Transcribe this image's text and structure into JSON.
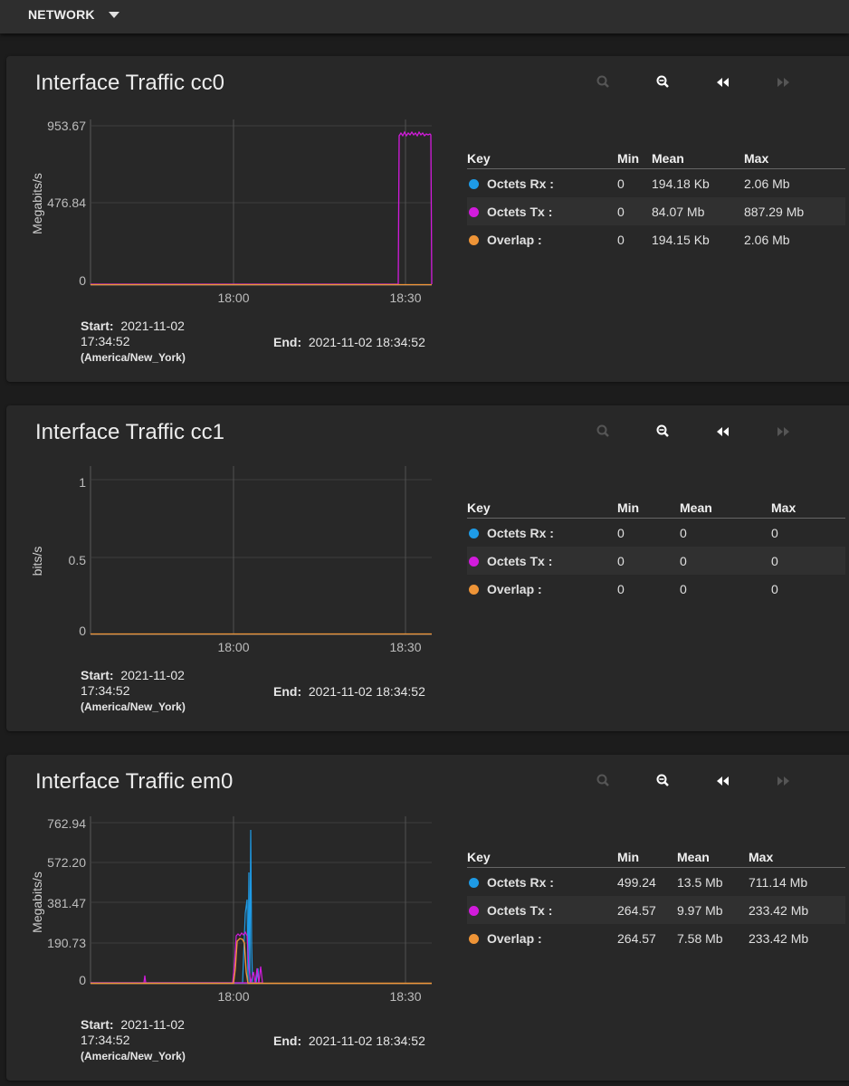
{
  "header": {
    "title": "NETWORK"
  },
  "colors": {
    "rx": "#1e9be6",
    "tx": "#d21bdc",
    "overlap": "#ee9437"
  },
  "key_header": {
    "key": "Key",
    "min": "Min",
    "mean": "Mean",
    "max": "Max"
  },
  "footer": {
    "start_label": "Start:",
    "start_date": "2021-11-02",
    "start_time": "17:34:52",
    "timezone": "(America/New_York)",
    "end_label": "End:",
    "end_value": "2021-11-02 18:34:52"
  },
  "cards": [
    {
      "title": "Interface Traffic cc0",
      "ylabel": "Megabits/s",
      "yticks": [
        "953.67",
        "476.84",
        "0"
      ],
      "xticks": [
        "18:00",
        "18:30"
      ],
      "rows": [
        {
          "label": "Octets Rx :",
          "min": "0",
          "mean": "194.18 Kb",
          "max": "2.06 Mb"
        },
        {
          "label": "Octets Tx :",
          "min": "0",
          "mean": "84.07 Mb",
          "max": "887.29 Mb"
        },
        {
          "label": "Overlap :",
          "min": "0",
          "mean": "194.15 Kb",
          "max": "2.06 Mb"
        }
      ]
    },
    {
      "title": "Interface Traffic cc1",
      "ylabel": "bits/s",
      "yticks": [
        "1",
        "0.5",
        "0"
      ],
      "xticks": [
        "18:00",
        "18:30"
      ],
      "rows": [
        {
          "label": "Octets Rx :",
          "min": "0",
          "mean": "0",
          "max": "0"
        },
        {
          "label": "Octets Tx :",
          "min": "0",
          "mean": "0",
          "max": "0"
        },
        {
          "label": "Overlap :",
          "min": "0",
          "mean": "0",
          "max": "0"
        }
      ]
    },
    {
      "title": "Interface Traffic em0",
      "ylabel": "Megabits/s",
      "yticks": [
        "762.94",
        "572.20",
        "381.47",
        "190.73",
        "0"
      ],
      "xticks": [
        "18:00",
        "18:30"
      ],
      "rows": [
        {
          "label": "Octets Rx :",
          "min": "499.24",
          "mean": "13.5 Mb",
          "max": "711.14 Mb"
        },
        {
          "label": "Octets Tx :",
          "min": "264.57",
          "mean": "9.97 Mb",
          "max": "233.42 Mb"
        },
        {
          "label": "Overlap :",
          "min": "264.57",
          "mean": "7.58 Mb",
          "max": "233.42 Mb"
        }
      ]
    }
  ]
}
